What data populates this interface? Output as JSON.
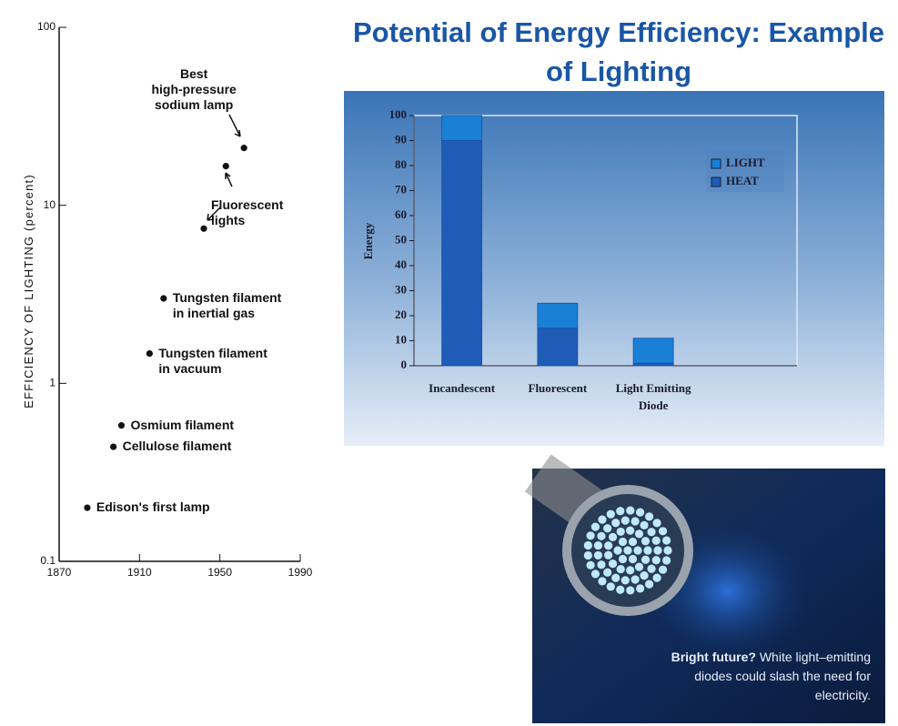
{
  "title": "Potential of Energy Efficiency: Example of Lighting",
  "chart_data": [
    {
      "type": "scatter",
      "y_label": "EFFICIENCY OF LIGHTING (percent)",
      "x": [
        1884,
        1897,
        1901,
        1915,
        1922,
        1942,
        1953,
        1962
      ],
      "values": [
        0.2,
        0.44,
        0.58,
        1.47,
        3.0,
        7.4,
        16.6,
        21
      ],
      "point_labels": [
        "Edison's first lamp",
        "Cellulose filament",
        "Osmium filament",
        "Tungsten filament\nin vacuum",
        "Tungsten filament\nin inertial gas",
        "Fluorescent\nlights",
        null,
        "Best\nhigh-pressure\nsodium lamp"
      ],
      "color": "#111111",
      "xlim": [
        1870,
        1990
      ],
      "xticks": [
        1870,
        1910,
        1950,
        1990
      ],
      "ylim": [
        0.1,
        100
      ],
      "yticks": [
        0.1,
        1,
        10,
        100
      ],
      "log_y": true
    },
    {
      "type": "stacked_bar",
      "y_label": "Energy",
      "categories": [
        "Incandescent",
        "Fluorescent",
        "Light Emitting Diode"
      ],
      "series": [
        {
          "name": "HEAT",
          "color": "#1f5cb8",
          "values": [
            90,
            15,
            1
          ]
        },
        {
          "name": "LIGHT",
          "color": "#1a80d6",
          "values": [
            10,
            10,
            10
          ]
        }
      ],
      "ylim": [
        0,
        100
      ],
      "yticks": [
        0,
        10,
        20,
        30,
        40,
        50,
        60,
        70,
        80,
        90,
        100
      ],
      "legend": "top-right"
    }
  ],
  "photo": {
    "caption_title": "Bright future?",
    "caption": "White light–emitting diodes could slash the need for electricity."
  }
}
